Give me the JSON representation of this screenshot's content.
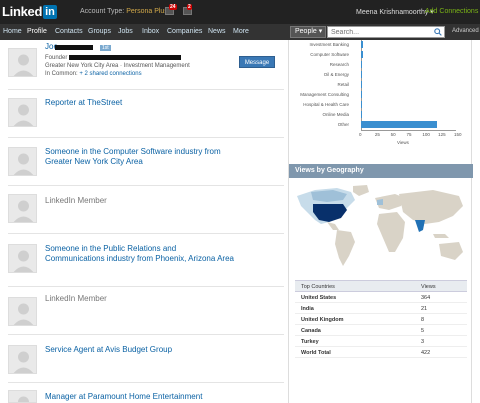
{
  "header": {
    "logo_text": "Linked",
    "logo_in": "in",
    "account_type_label": "Account Type:",
    "account_type_value": "Persona Plus",
    "notifications": [
      {
        "icon": "inbox-icon",
        "count": "24"
      },
      {
        "icon": "flag-icon",
        "count": "2"
      }
    ],
    "user_name": "Meena Krishnamoorthy ▾",
    "add_connections": "Add Connections"
  },
  "nav": {
    "items": [
      "Home",
      "Profile",
      "Contacts",
      "Groups",
      "Jobs",
      "Inbox",
      "Companies",
      "News",
      "More"
    ],
    "search_scope": "People ▾",
    "search_placeholder": "Search...",
    "advanced": "Advanced"
  },
  "viewers": [
    {
      "title": "Joe",
      "degree": "1st",
      "line1": "Founder",
      "line2": "Greater New York City Area · Investment Management",
      "common_label": "In Common:",
      "common_link": "+ 2 shared connections",
      "action": "Message"
    },
    {
      "title": "Reporter at TheStreet"
    },
    {
      "title": "Someone in the Computer Software industry from Greater New York City Area"
    },
    {
      "title": "LinkedIn Member"
    },
    {
      "title": "Someone in the Public Relations and Communications industry from Phoenix, Arizona Area"
    },
    {
      "title": "LinkedIn Member"
    },
    {
      "title": "Service Agent at Avis Budget Group"
    },
    {
      "title": "Manager at Paramount Home Entertainment"
    }
  ],
  "chart_data": {
    "type": "bar",
    "orientation": "horizontal",
    "categories": [
      "Investment Banking",
      "Computer Software",
      "Research",
      "Oil & Energy",
      "Retail",
      "Management Consulting",
      "Hospital & Health Care",
      "Online Media",
      "Other"
    ],
    "values": [
      3,
      3,
      1,
      1,
      1,
      1,
      1,
      1,
      120
    ],
    "xlim": [
      0,
      150
    ],
    "xticks": [
      "0",
      "25",
      "50",
      "75",
      "100",
      "125",
      "150"
    ],
    "xlabel": "Views",
    "bar_color": "#3a8fd0"
  },
  "geography": {
    "title": "Views by Geography",
    "table_headers": [
      "Top Countries",
      "Views"
    ],
    "rows": [
      {
        "country": "United States",
        "views": "364"
      },
      {
        "country": "India",
        "views": "21"
      },
      {
        "country": "United Kingdom",
        "views": "8"
      },
      {
        "country": "Canada",
        "views": "5"
      },
      {
        "country": "Turkey",
        "views": "3"
      }
    ],
    "total_label": "World Total",
    "total_value": "422"
  }
}
